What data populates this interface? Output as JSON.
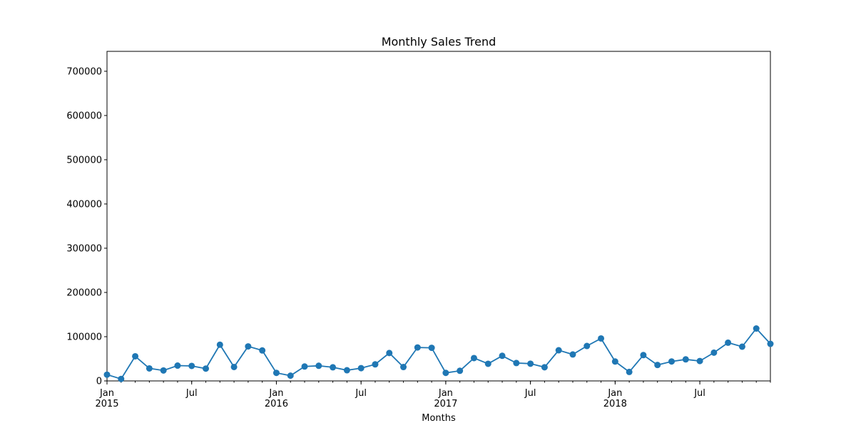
{
  "chart_data": {
    "type": "line",
    "title": "Monthly Sales Trend",
    "xlabel": "Months",
    "ylabel": "",
    "x": [
      "2015-01",
      "2015-02",
      "2015-03",
      "2015-04",
      "2015-05",
      "2015-06",
      "2015-07",
      "2015-08",
      "2015-09",
      "2015-10",
      "2015-11",
      "2015-12",
      "2016-01",
      "2016-02",
      "2016-03",
      "2016-04",
      "2016-05",
      "2016-06",
      "2016-07",
      "2016-08",
      "2016-09",
      "2016-10",
      "2016-11",
      "2016-12",
      "2017-01",
      "2017-02",
      "2017-03",
      "2017-04",
      "2017-05",
      "2017-06",
      "2017-07",
      "2017-08",
      "2017-09",
      "2017-10",
      "2017-11",
      "2017-12",
      "2018-01",
      "2018-02",
      "2018-03",
      "2018-04",
      "2018-05",
      "2018-06",
      "2018-07",
      "2018-08",
      "2018-09",
      "2018-10",
      "2018-11",
      "2018-12"
    ],
    "series": [
      {
        "color": "#1f77b4",
        "values": [
          14200,
          4500,
          55700,
          28300,
          23600,
          34600,
          33900,
          27900,
          81800,
          31500,
          78100,
          68900,
          18200,
          11900,
          32600,
          34200,
          30800,
          24100,
          28900,
          37400,
          63100,
          31400,
          75600,
          74800,
          18200,
          22900,
          51700,
          38800,
          56800,
          40500,
          39000,
          30900,
          69300,
          59800,
          79000,
          96000,
          43900,
          20300,
          58400,
          36000,
          44000,
          48700,
          45000,
          63900,
          86400,
          77400,
          118500,
          83800
        ]
      }
    ],
    "ylim": [
      0,
      745000
    ],
    "yticks": [
      "0",
      "100000",
      "200000",
      "300000",
      "400000",
      "500000",
      "600000",
      "700000"
    ],
    "xticks": [
      {
        "x": "2015-01",
        "label": "Jan",
        "sublabel": "2015"
      },
      {
        "x": "2015-07",
        "label": "Jul",
        "sublabel": ""
      },
      {
        "x": "2016-01",
        "label": "Jan",
        "sublabel": "2016"
      },
      {
        "x": "2016-07",
        "label": "Jul",
        "sublabel": ""
      },
      {
        "x": "2017-01",
        "label": "Jan",
        "sublabel": "2017"
      },
      {
        "x": "2017-07",
        "label": "Jul",
        "sublabel": ""
      },
      {
        "x": "2018-01",
        "label": "Jan",
        "sublabel": "2018"
      },
      {
        "x": "2018-07",
        "label": "Jul",
        "sublabel": ""
      }
    ],
    "grid": false,
    "legend": "none"
  }
}
